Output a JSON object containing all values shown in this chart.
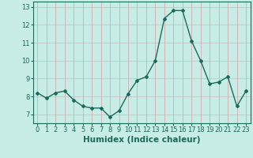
{
  "x": [
    0,
    1,
    2,
    3,
    4,
    5,
    6,
    7,
    8,
    9,
    10,
    11,
    12,
    13,
    14,
    15,
    16,
    17,
    18,
    19,
    20,
    21,
    22,
    23
  ],
  "y": [
    8.2,
    7.9,
    8.2,
    8.3,
    7.8,
    7.45,
    7.35,
    7.35,
    6.85,
    7.2,
    8.15,
    8.9,
    9.1,
    10.0,
    12.35,
    12.8,
    12.8,
    11.1,
    10.0,
    8.7,
    8.8,
    9.1,
    7.45,
    8.3
  ],
  "line_color": "#1a6b5a",
  "marker": "D",
  "markersize": 2.0,
  "linewidth": 1.0,
  "xlabel": "Humidex (Indice chaleur)",
  "xlabel_fontsize": 7.5,
  "xlim": [
    -0.5,
    23.5
  ],
  "ylim": [
    6.5,
    13.3
  ],
  "yticks": [
    7,
    8,
    9,
    10,
    11,
    12,
    13
  ],
  "xticks": [
    0,
    1,
    2,
    3,
    4,
    5,
    6,
    7,
    8,
    9,
    10,
    11,
    12,
    13,
    14,
    15,
    16,
    17,
    18,
    19,
    20,
    21,
    22,
    23
  ],
  "bg_color": "#c8ece6",
  "grid_color_v": "#d4a0a0",
  "grid_color_h": "#c0c0c0",
  "tick_fontsize": 6.0,
  "label_color": "#1a6b5a"
}
